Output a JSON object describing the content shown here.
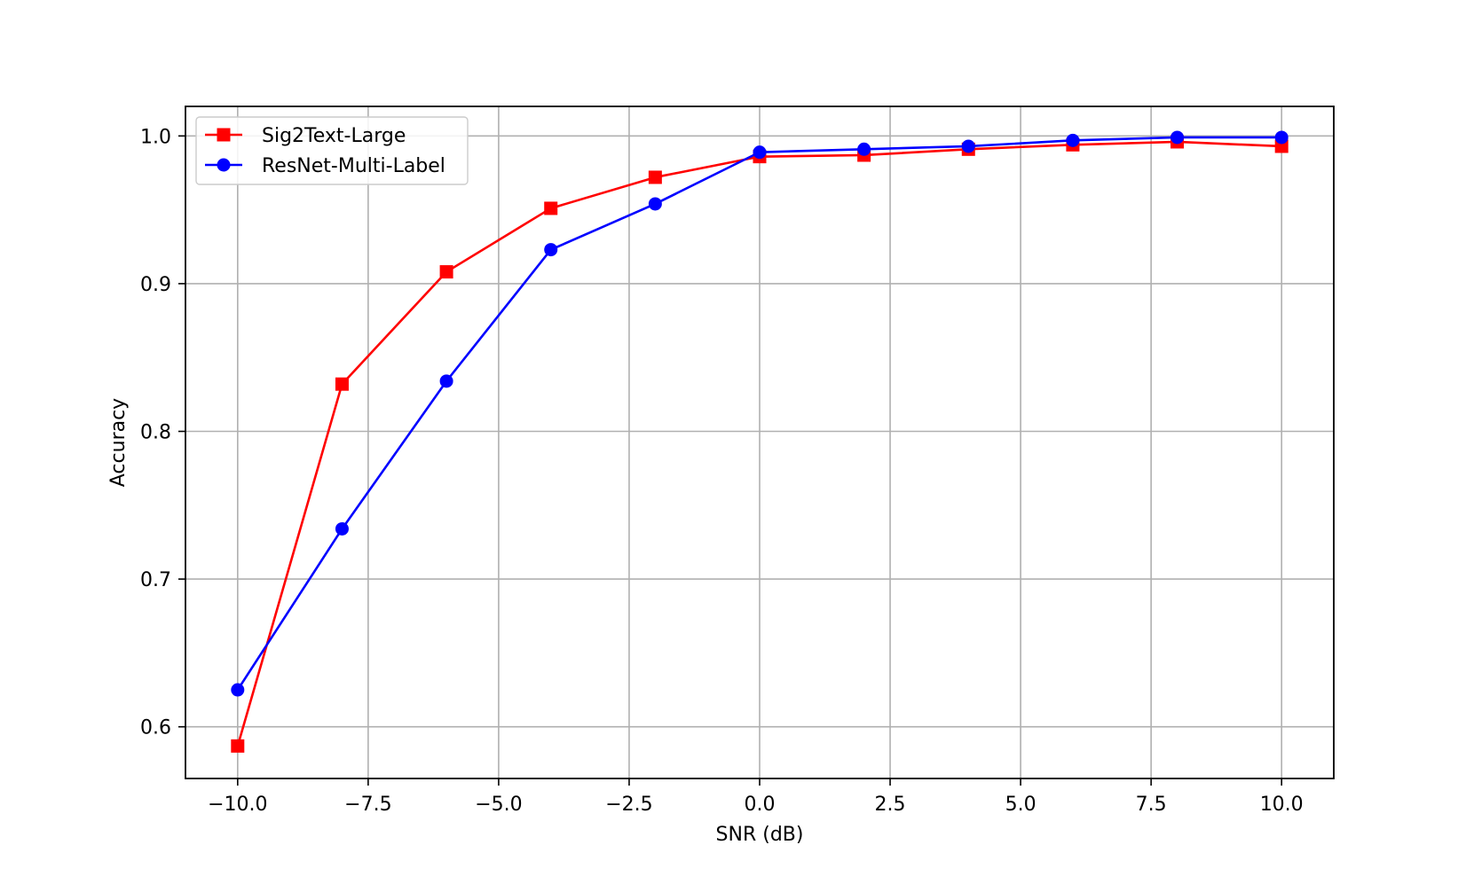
{
  "chart_data": {
    "type": "line",
    "title": "",
    "xlabel": "SNR (dB)",
    "ylabel": "Accuracy",
    "xlim": [
      -11.0,
      11.0
    ],
    "ylim": [
      0.565,
      1.02
    ],
    "x_ticks": [
      -10.0,
      -7.5,
      -5.0,
      -2.5,
      0.0,
      2.5,
      5.0,
      7.5,
      10.0
    ],
    "x_tick_labels": [
      "−10.0",
      "−7.5",
      "−5.0",
      "−2.5",
      "0.0",
      "2.5",
      "5.0",
      "7.5",
      "10.0"
    ],
    "y_ticks": [
      0.6,
      0.7,
      0.8,
      0.9,
      1.0
    ],
    "y_tick_labels": [
      "0.6",
      "0.7",
      "0.8",
      "0.9",
      "1.0"
    ],
    "grid": true,
    "legend_position": "top-left",
    "x": [
      -10,
      -8,
      -6,
      -4,
      -2,
      0,
      2,
      4,
      6,
      8,
      10
    ],
    "series": [
      {
        "name": "Sig2Text-Large",
        "color": "#ff0000",
        "marker": "square",
        "values": [
          0.587,
          0.832,
          0.908,
          0.951,
          0.972,
          0.986,
          0.987,
          0.991,
          0.994,
          0.996,
          0.993
        ]
      },
      {
        "name": "ResNet-Multi-Label",
        "color": "#0000ff",
        "marker": "circle",
        "values": [
          0.625,
          0.734,
          0.834,
          0.923,
          0.954,
          0.989,
          0.991,
          0.993,
          0.997,
          0.999,
          0.999
        ]
      }
    ]
  }
}
